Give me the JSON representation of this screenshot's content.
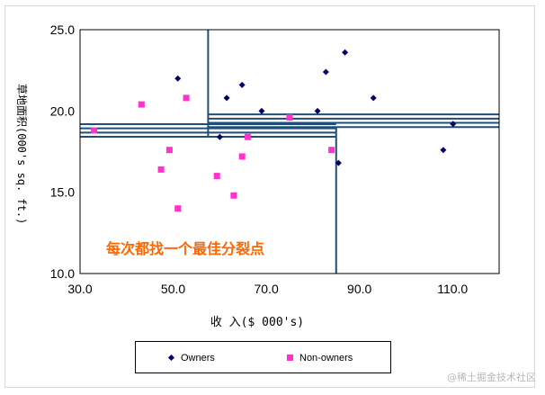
{
  "chart_data": {
    "type": "scatter",
    "xlabel": "收 入($ 000's)",
    "ylabel": "草地面积(000's sq. ft.)",
    "xlim": [
      30,
      120
    ],
    "ylim": [
      10,
      25
    ],
    "x_ticks": [
      "30.0",
      "50.0",
      "70.0",
      "90.0",
      "110.0"
    ],
    "x_tick_values": [
      30,
      50,
      70,
      90,
      110
    ],
    "y_ticks": [
      "10.0",
      "15.0",
      "20.0",
      "25.0"
    ],
    "y_tick_values": [
      10,
      15,
      20,
      25
    ],
    "grid": false,
    "legend_position": "bottom",
    "annotation": "每次都找一个最佳分裂点",
    "annotation_color": "#ff6600",
    "split_color": "#1f4e79",
    "series": [
      {
        "name": "Owners",
        "marker": "diamond",
        "color": "#000066",
        "points": [
          [
            51.0,
            22.0
          ],
          [
            64.8,
            21.6
          ],
          [
            61.5,
            20.8
          ],
          [
            82.8,
            22.4
          ],
          [
            86.9,
            23.6
          ],
          [
            93.0,
            20.8
          ],
          [
            69.0,
            20.0
          ],
          [
            81.0,
            20.0
          ],
          [
            60.0,
            18.4
          ],
          [
            85.5,
            16.8
          ],
          [
            110.1,
            19.2
          ],
          [
            108.0,
            17.6
          ]
        ]
      },
      {
        "name": "Non-owners",
        "marker": "square",
        "color": "#ff33cc",
        "points": [
          [
            33.0,
            18.8
          ],
          [
            43.2,
            20.4
          ],
          [
            52.8,
            20.8
          ],
          [
            49.2,
            17.6
          ],
          [
            47.4,
            16.4
          ],
          [
            59.4,
            16.0
          ],
          [
            66.0,
            18.4
          ],
          [
            64.8,
            17.2
          ],
          [
            63.0,
            14.8
          ],
          [
            51.0,
            14.0
          ],
          [
            75.0,
            19.6
          ],
          [
            84.0,
            17.6
          ]
        ]
      }
    ],
    "splits": [
      {
        "orientation": "vertical",
        "x": 57.5,
        "y_range": [
          18.4,
          25.0
        ],
        "lines": 1
      },
      {
        "orientation": "vertical",
        "x": 85.0,
        "y_range": [
          10.0,
          19.0
        ],
        "lines": 1
      },
      {
        "orientation": "horizontal",
        "y": 18.8,
        "x_range": [
          30.0,
          85.0
        ],
        "lines": 4,
        "spacing": 0.26
      },
      {
        "orientation": "horizontal",
        "y": 19.4,
        "x_range": [
          57.5,
          120.0
        ],
        "lines": 4,
        "spacing": 0.26
      }
    ]
  },
  "legend": {
    "owners_label": "Owners",
    "nonowners_label": "Non-owners"
  },
  "watermark": "@稀土掘金技术社区"
}
